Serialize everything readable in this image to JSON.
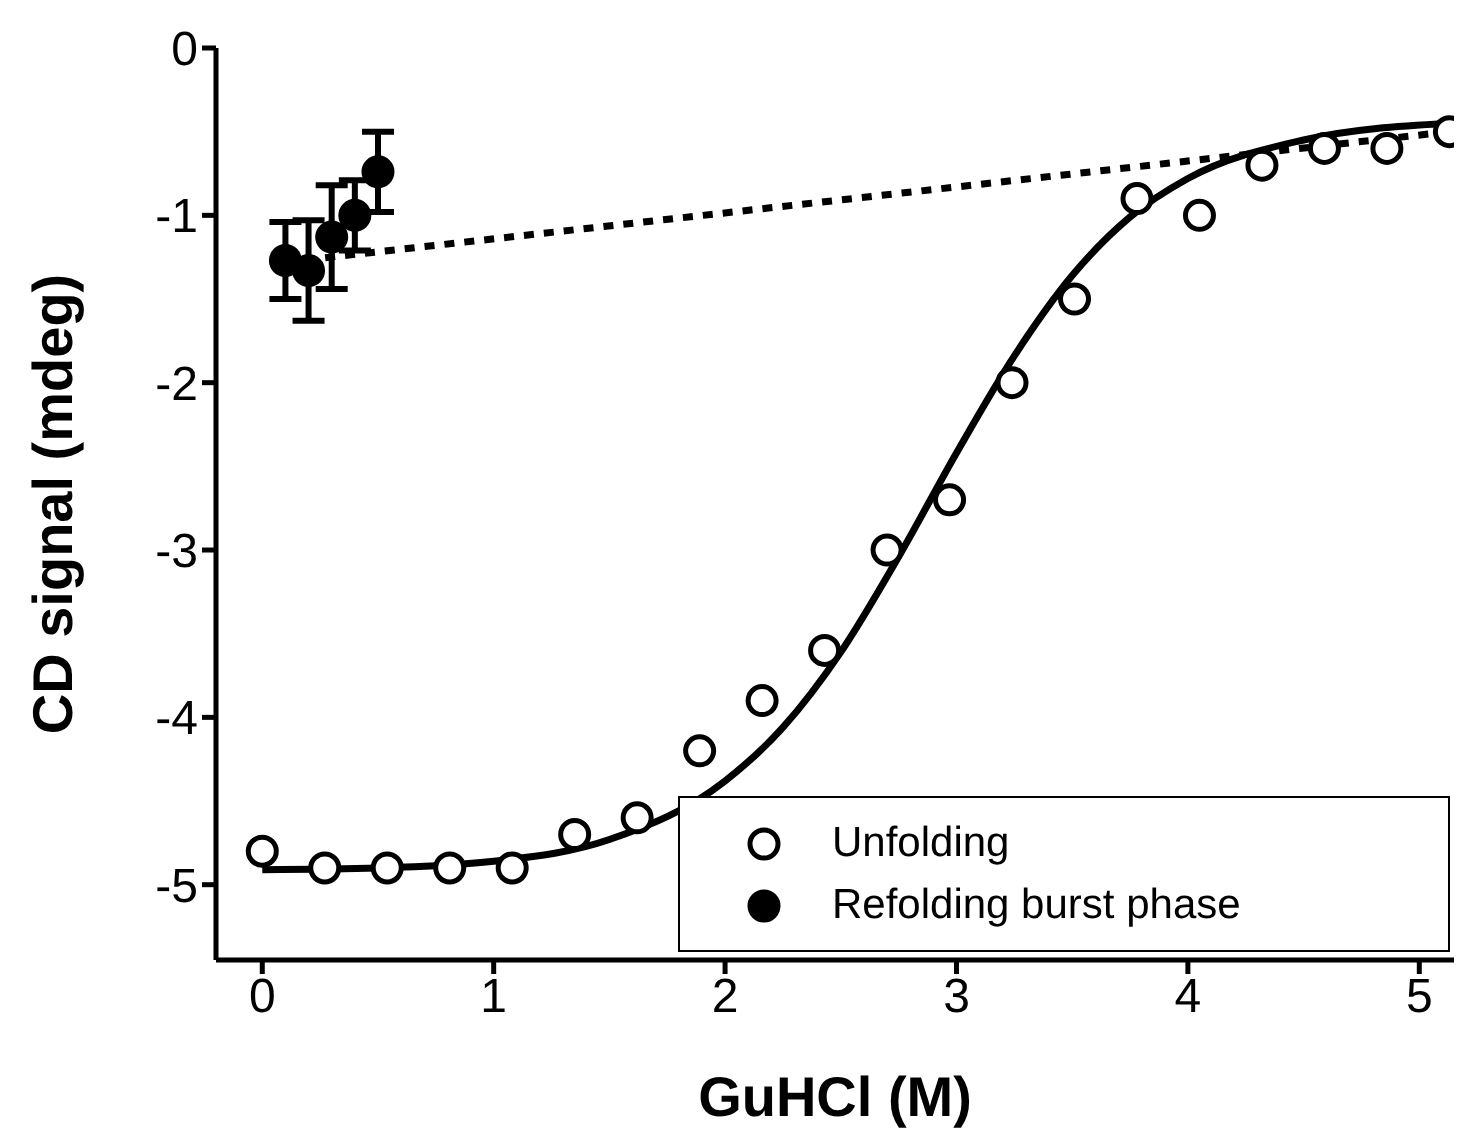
{
  "chart_data": {
    "type": "scatter",
    "xlabel": "GuHCl (M)",
    "ylabel": "CD signal (mdeg)",
    "xlim": [
      -0.2,
      5.15
    ],
    "xticks": [
      0,
      1,
      2,
      3,
      4,
      5
    ],
    "ylim": [
      -5.45,
      0
    ],
    "yticks": [
      -5,
      -4,
      -3,
      -2,
      -1,
      0
    ],
    "grid": false,
    "legend": "bottom right",
    "marker": "circle",
    "series": [
      {
        "name": "Unfolding",
        "color": "#ffffff",
        "x": [
          0,
          0.27,
          0.54,
          0.81,
          1.08,
          1.35,
          1.62,
          1.89,
          2.16,
          2.43,
          2.7,
          2.97,
          3.24,
          3.51,
          3.78,
          4.05,
          4.32,
          4.59,
          4.86,
          5.13
        ],
        "values": [
          -4.8,
          -4.9,
          -4.9,
          -4.9,
          -4.9,
          -4.7,
          -4.6,
          -4.2,
          -3.9,
          -3.6,
          -3.0,
          -2.7,
          -2.0,
          -1.5,
          -0.9,
          -1.0,
          -0.7,
          -0.6,
          -0.6,
          -0.5
        ]
      },
      {
        "name": "Refolding burst phase",
        "color": "#000000",
        "x": [
          0.1,
          0.2,
          0.3,
          0.4,
          0.5
        ],
        "values": [
          -1.27,
          -1.33,
          -1.13,
          -1.0,
          -0.74
        ],
        "errors": [
          0.23,
          0.3,
          0.31,
          0.21,
          0.24
        ]
      },
      {
        "type": "line",
        "color": "#000000",
        "line_style": "solid",
        "marker": "none",
        "x": [
          0,
          0.5,
          1,
          1.5,
          2,
          2.25,
          2.5,
          2.75,
          3,
          3.25,
          3.5,
          3.75,
          4,
          4.5,
          5.13
        ],
        "values": [
          -4.91,
          -4.9,
          -4.86,
          -4.73,
          -4.38,
          -4.06,
          -3.61,
          -3.04,
          -2.42,
          -1.84,
          -1.36,
          -1.01,
          -0.78,
          -0.55,
          -0.45
        ]
      },
      {
        "type": "line",
        "color": "#000000",
        "line_style": "dotted",
        "marker": "none",
        "x": [
          0.1,
          5.13
        ],
        "values": [
          -1.28,
          -0.5
        ]
      }
    ]
  }
}
